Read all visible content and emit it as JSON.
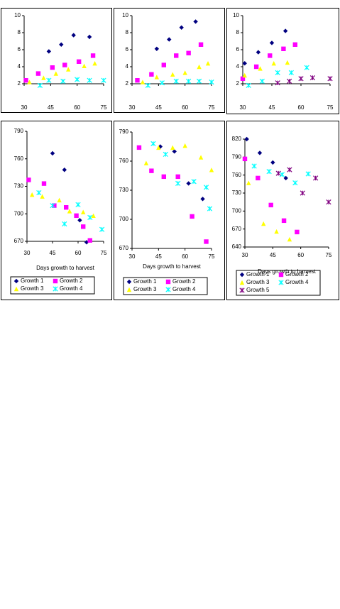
{
  "chart_data": [
    {
      "type": "scatter",
      "xlim": [
        30,
        75
      ],
      "xticks": [
        30,
        45,
        60,
        75
      ],
      "ylim": [
        2,
        10
      ],
      "yticks": [
        2,
        4,
        6,
        8,
        10
      ],
      "series": [
        {
          "color": "#000080",
          "marker": "diamond",
          "x": [
            44,
            51,
            58,
            67
          ],
          "values": [
            5.8,
            6.6,
            7.7,
            7.5
          ]
        },
        {
          "color": "#ff00ff",
          "marker": "square",
          "x": [
            31,
            38,
            46,
            53,
            61,
            69
          ],
          "values": [
            2.4,
            3.2,
            3.9,
            4.2,
            4.6,
            5.3
          ]
        },
        {
          "color": "#ffff00",
          "marker": "triangle",
          "x": [
            33,
            41,
            48,
            55,
            64,
            70
          ],
          "values": [
            2.2,
            2.7,
            3.2,
            3.7,
            4.1,
            4.4
          ]
        },
        {
          "color": "#00ffff",
          "marker": "star",
          "x": [
            39,
            44,
            52,
            60,
            67,
            75
          ],
          "values": [
            1.8,
            2.4,
            2.3,
            2.5,
            2.4,
            2.4
          ]
        }
      ]
    },
    {
      "type": "scatter",
      "xlim": [
        30,
        75
      ],
      "xticks": [
        30,
        45,
        60,
        75
      ],
      "ylim": [
        2,
        10
      ],
      "yticks": [
        2,
        4,
        6,
        8,
        10
      ],
      "series": [
        {
          "color": "#000080",
          "marker": "diamond",
          "x": [
            44,
            51,
            58,
            66
          ],
          "values": [
            6.1,
            7.2,
            8.6,
            9.3
          ]
        },
        {
          "color": "#ff00ff",
          "marker": "square",
          "x": [
            33,
            41,
            48,
            55,
            62,
            69
          ],
          "values": [
            2.4,
            3.1,
            4.2,
            5.3,
            5.6,
            6.6
          ]
        },
        {
          "color": "#ffff00",
          "marker": "triangle",
          "x": [
            36,
            44,
            53,
            60,
            68,
            73
          ],
          "values": [
            2.2,
            2.8,
            3.1,
            3.3,
            4.0,
            4.4
          ]
        },
        {
          "color": "#00ffff",
          "marker": "star",
          "x": [
            39,
            47,
            55,
            62,
            68,
            75
          ],
          "values": [
            1.8,
            2.1,
            2.3,
            2.3,
            2.3,
            2.2
          ]
        }
      ]
    },
    {
      "type": "scatter",
      "xlim": [
        30,
        75
      ],
      "xticks": [
        30,
        45,
        60,
        75
      ],
      "ylim": [
        2,
        10
      ],
      "yticks": [
        2,
        4,
        6,
        8,
        10
      ],
      "series": [
        {
          "color": "#000080",
          "marker": "diamond",
          "x": [
            31,
            38,
            45,
            52
          ],
          "values": [
            4.4,
            5.7,
            6.8,
            8.2
          ]
        },
        {
          "color": "#ff00ff",
          "marker": "square",
          "x": [
            30,
            37,
            44,
            51,
            57
          ],
          "values": [
            2.6,
            4.0,
            5.3,
            6.1,
            6.6
          ]
        },
        {
          "color": "#ffff00",
          "marker": "triangle",
          "x": [
            31,
            39,
            46,
            53
          ],
          "values": [
            3.0,
            3.8,
            4.4,
            4.5
          ]
        },
        {
          "color": "#00ffff",
          "marker": "star",
          "x": [
            33,
            40,
            48,
            55,
            63
          ],
          "values": [
            1.8,
            2.3,
            3.3,
            3.3,
            3.9
          ]
        },
        {
          "color": "#800080",
          "marker": "star",
          "x": [
            48,
            54,
            60,
            66,
            75
          ],
          "values": [
            2.1,
            2.3,
            2.6,
            2.7,
            2.6
          ]
        }
      ]
    },
    {
      "type": "scatter",
      "x_label": "Days growth to harvest",
      "xlim": [
        30,
        75
      ],
      "xticks": [
        30,
        45,
        60,
        75
      ],
      "ylim": [
        670,
        790
      ],
      "yticks": [
        670,
        700,
        730,
        760,
        790
      ],
      "series": [
        {
          "name": "Growth 1",
          "color": "#000080",
          "marker": "diamond",
          "x": [
            45,
            52,
            61,
            65
          ],
          "values": [
            766,
            748,
            693,
            669
          ]
        },
        {
          "name": "Growth 2",
          "color": "#ff00ff",
          "marker": "square",
          "x": [
            31,
            40,
            46,
            53,
            59,
            63,
            67
          ],
          "values": [
            737,
            733,
            709,
            707,
            698,
            686,
            671
          ]
        },
        {
          "name": "Growth 3",
          "color": "#ffff00",
          "marker": "triangle",
          "x": [
            33,
            39,
            49,
            55,
            63,
            69
          ],
          "values": [
            721,
            719,
            715,
            703,
            702,
            698
          ]
        },
        {
          "name": "Growth 4",
          "color": "#00ffff",
          "marker": "star",
          "x": [
            37,
            45,
            52,
            60,
            67,
            74
          ],
          "values": [
            723,
            709,
            689,
            710,
            696,
            683
          ]
        }
      ]
    },
    {
      "type": "scatter",
      "x_label": "Days growth to harvest",
      "xlim": [
        30,
        75
      ],
      "xticks": [
        30,
        45,
        60,
        75
      ],
      "ylim": [
        670,
        790
      ],
      "yticks": [
        670,
        700,
        730,
        760,
        790
      ],
      "series": [
        {
          "name": "Growth 1",
          "color": "#000080",
          "marker": "diamond",
          "x": [
            46,
            54,
            62,
            70
          ],
          "values": [
            775,
            770,
            737,
            721
          ]
        },
        {
          "name": "Growth 2",
          "color": "#ff00ff",
          "marker": "square",
          "x": [
            34,
            41,
            48,
            56,
            64,
            72
          ],
          "values": [
            774,
            750,
            744,
            744,
            703,
            677
          ]
        },
        {
          "name": "Growth 3",
          "color": "#ffff00",
          "marker": "triangle",
          "x": [
            38,
            45,
            53,
            60,
            69,
            75
          ],
          "values": [
            758,
            774,
            774,
            776,
            764,
            751
          ]
        },
        {
          "name": "Growth 4",
          "color": "#00ffff",
          "marker": "star",
          "x": [
            42,
            49,
            56,
            65,
            72,
            74
          ],
          "values": [
            778,
            767,
            737,
            739,
            733,
            711
          ]
        }
      ]
    },
    {
      "type": "scatter",
      "x_label": "Days growth to harvest",
      "xlim": [
        30,
        75
      ],
      "xticks": [
        30,
        45,
        60,
        75
      ],
      "ylim": [
        640,
        820
      ],
      "yticks": [
        640,
        670,
        700,
        730,
        760,
        790,
        820
      ],
      "series": [
        {
          "name": "Growth 1",
          "color": "#000080",
          "marker": "diamond",
          "x": [
            31,
            38,
            45,
            52
          ],
          "values": [
            820,
            797,
            781,
            755
          ]
        },
        {
          "name": "Growth 2",
          "color": "#ff00ff",
          "marker": "square",
          "x": [
            30,
            37,
            44,
            51,
            58
          ],
          "values": [
            787,
            755,
            710,
            684,
            665
          ]
        },
        {
          "name": "Growth 3",
          "color": "#ffff00",
          "marker": "triangle",
          "x": [
            32,
            40,
            47,
            54
          ],
          "values": [
            747,
            679,
            666,
            653
          ]
        },
        {
          "name": "Growth 4",
          "color": "#00ffff",
          "marker": "star",
          "x": [
            35,
            43,
            50,
            57,
            64
          ],
          "values": [
            775,
            766,
            761,
            747,
            762
          ]
        },
        {
          "name": "Growth 5",
          "color": "#800080",
          "marker": "star",
          "x": [
            48,
            54,
            61,
            68,
            75
          ],
          "values": [
            763,
            769,
            730,
            755,
            715
          ]
        }
      ]
    }
  ]
}
